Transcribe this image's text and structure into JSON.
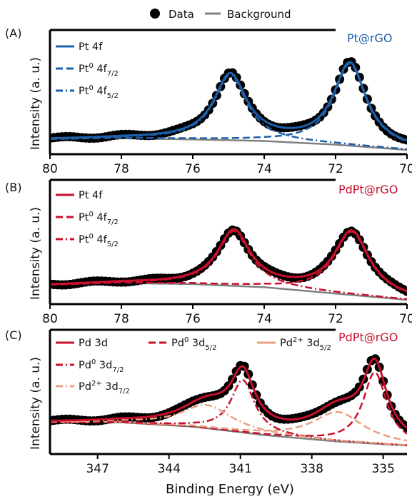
{
  "chart_data": {
    "top_legend": {
      "data_label": "Data",
      "background_label": "Background",
      "data_color": "#000000",
      "background_color": "#808080"
    },
    "xlabel": "Binding Energy (eV)",
    "panels": [
      {
        "type": "line",
        "panel_label": "(A)",
        "sample_label": "Pt@rGO",
        "sample_color": "#1d5fa8",
        "ylabel": "Intensity (a. u.)",
        "xlim": [
          80,
          70
        ],
        "ylim": [
          0,
          1.1
        ],
        "ticks": [
          80,
          78,
          76,
          74,
          72,
          70
        ],
        "tick_labels": [
          "80",
          "78",
          "76",
          "74",
          "72",
          "70"
        ],
        "legend": [
          {
            "label": "Pt 4f",
            "style": "solid",
            "color": "#1d5fa8"
          },
          {
            "label": "Pt",
            "sup": "0",
            "rest": " 4f",
            "sub": "7/2",
            "style": "dashed",
            "color": "#1d5fa8"
          },
          {
            "label": "Pt",
            "sup": "0",
            "rest": " 4f",
            "sub": "5/2",
            "style": "dashdot",
            "color": "#1d5fa8"
          }
        ],
        "peaks": [
          {
            "center": 71.6,
            "amp": 0.78,
            "width": 0.55
          },
          {
            "center": 74.95,
            "amp": 0.62,
            "width": 0.55
          }
        ],
        "background": [
          [
            80,
            0.1
          ],
          [
            78,
            0.11
          ],
          [
            76,
            0.1
          ],
          [
            74,
            0.085
          ],
          [
            72,
            0.05
          ],
          [
            70,
            0.0
          ]
        ]
      },
      {
        "type": "line",
        "panel_label": "(B)",
        "sample_label": "PdPt@rGO",
        "sample_color": "#c8102e",
        "ylabel": "Intensity (a. u.)",
        "xlim": [
          80,
          70
        ],
        "ylim": [
          0,
          1.1
        ],
        "ticks": [
          80,
          78,
          76,
          74,
          72,
          70
        ],
        "tick_labels": [
          "80",
          "78",
          "76",
          "74",
          "72",
          "70"
        ],
        "legend": [
          {
            "label": "Pt 4f",
            "style": "solid",
            "color": "#c8102e"
          },
          {
            "label": "Pt",
            "sup": "0",
            "rest": " 4f",
            "sub": "7/2",
            "style": "dashed",
            "color": "#c8102e"
          },
          {
            "label": "Pt",
            "sup": "0",
            "rest": " 4f",
            "sub": "5/2",
            "style": "dashdot",
            "color": "#c8102e"
          }
        ],
        "peaks": [
          {
            "center": 71.55,
            "amp": 0.6,
            "width": 0.6
          },
          {
            "center": 74.85,
            "amp": 0.52,
            "width": 0.55
          }
        ],
        "background": [
          [
            80,
            0.14
          ],
          [
            78,
            0.16
          ],
          [
            76,
            0.15
          ],
          [
            74,
            0.12
          ],
          [
            72,
            0.06
          ],
          [
            70,
            0.0
          ]
        ]
      },
      {
        "type": "line",
        "panel_label": "(C)",
        "sample_label": "PdPt@rGO",
        "sample_color": "#c8102e",
        "ylabel": "Intensity (a. u.)",
        "xlim": [
          349,
          334
        ],
        "ylim": [
          0,
          1.1
        ],
        "ticks": [
          347,
          344,
          341,
          338,
          335
        ],
        "tick_labels": [
          "347",
          "344",
          "341",
          "338",
          "335"
        ],
        "legend": [
          {
            "label": "Pd 3d",
            "style": "solid",
            "color": "#c8102e"
          },
          {
            "label": "Pd",
            "sup": "0",
            "rest": " 3d",
            "sub": "5/2",
            "style": "dashed",
            "color": "#c8102e"
          },
          {
            "label": "Pd",
            "sup": "2+",
            "rest": " 3d",
            "sub": "5/2",
            "style": "solid",
            "color": "#e8a083"
          },
          {
            "label": "Pd",
            "sup": "0",
            "rest": " 3d",
            "sub": "7/2",
            "style": "dashdot",
            "color": "#c8102e"
          },
          {
            "label": "Pd",
            "sup": "2+",
            "rest": " 3d",
            "sub": "7/2",
            "style": "dashdot",
            "color": "#e8a083"
          }
        ],
        "peaks": [
          {
            "center": 335.35,
            "amp": 0.68,
            "width": 0.6,
            "kind": "Pd0_52"
          },
          {
            "center": 336.9,
            "amp": 0.28,
            "width": 1.3,
            "kind": "Pd2_52"
          },
          {
            "center": 340.9,
            "amp": 0.5,
            "width": 0.6,
            "kind": "Pd0_72"
          },
          {
            "center": 342.4,
            "amp": 0.22,
            "width": 1.3,
            "kind": "Pd2_72"
          }
        ],
        "background": [
          [
            349,
            0.26
          ],
          [
            346,
            0.26
          ],
          [
            343,
            0.22
          ],
          [
            340,
            0.14
          ],
          [
            337,
            0.08
          ],
          [
            334,
            0.04
          ]
        ]
      }
    ]
  }
}
